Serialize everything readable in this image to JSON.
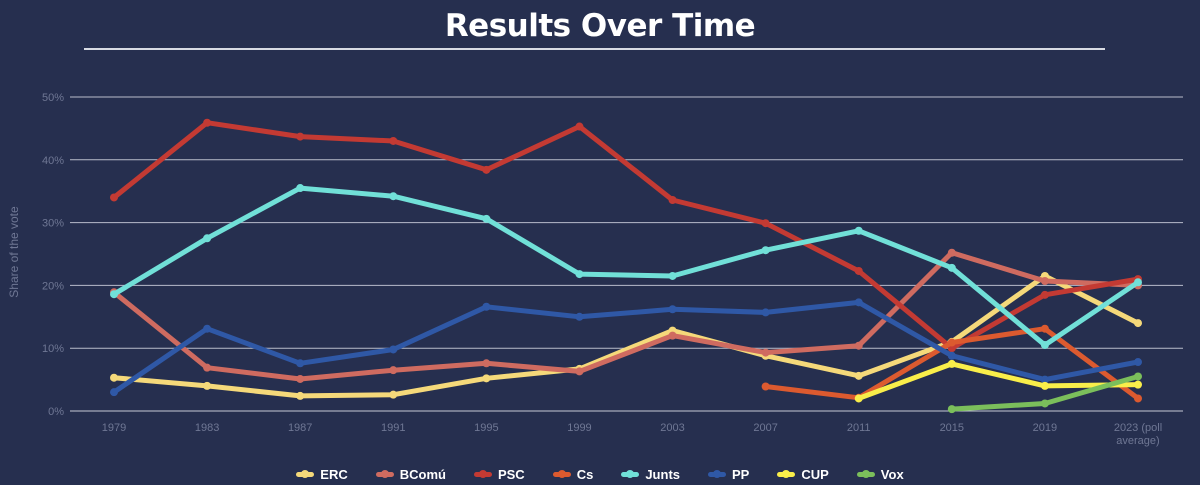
{
  "title": "Results Over Time",
  "chart_data": {
    "type": "line",
    "title": "Results Over Time",
    "ylabel": "Share of the vote",
    "xlabel": "",
    "ylim": [
      0,
      50
    ],
    "yticks": [
      "0%",
      "10%",
      "20%",
      "30%",
      "40%",
      "50%"
    ],
    "categories": [
      "1979",
      "1983",
      "1987",
      "1991",
      "1995",
      "1999",
      "2003",
      "2007",
      "2011",
      "2015",
      "2019",
      "2023 (poll average)"
    ],
    "grid": true,
    "legend_position": "bottom",
    "series": [
      {
        "name": "ERC",
        "color": "#f5d97a",
        "values": [
          5.3,
          4.0,
          2.4,
          2.6,
          5.2,
          6.7,
          12.8,
          8.8,
          5.6,
          11.0,
          21.5,
          14.0
        ]
      },
      {
        "name": "BComú",
        "color": "#cf6b60",
        "values": [
          18.9,
          6.9,
          5.1,
          6.5,
          7.6,
          6.3,
          12.0,
          9.3,
          10.4,
          25.2,
          20.7,
          20.0
        ]
      },
      {
        "name": "PSC",
        "color": "#c33a33",
        "values": [
          34.0,
          45.9,
          43.7,
          43.0,
          38.4,
          45.3,
          33.6,
          29.9,
          22.3,
          10.0,
          18.5,
          21.0
        ]
      },
      {
        "name": "Cs",
        "color": "#dc5a2f",
        "values": [
          null,
          null,
          null,
          null,
          null,
          null,
          null,
          3.9,
          2.1,
          10.9,
          13.1,
          2.0
        ]
      },
      {
        "name": "Junts",
        "color": "#71e0d8",
        "values": [
          18.6,
          27.5,
          35.5,
          34.2,
          30.6,
          21.8,
          21.5,
          25.6,
          28.7,
          22.8,
          10.5,
          20.5
        ]
      },
      {
        "name": "PP",
        "color": "#2f58a6",
        "values": [
          3.0,
          13.1,
          7.6,
          9.8,
          16.6,
          15.0,
          16.2,
          15.7,
          17.3,
          8.8,
          5.0,
          7.8
        ]
      },
      {
        "name": "CUP",
        "color": "#f9ee4a",
        "values": [
          null,
          null,
          null,
          null,
          null,
          null,
          null,
          null,
          2.0,
          7.5,
          4.0,
          4.2
        ]
      },
      {
        "name": "Vox",
        "color": "#7bbf5b",
        "values": [
          null,
          null,
          null,
          null,
          null,
          null,
          null,
          null,
          null,
          0.3,
          1.2,
          5.5
        ]
      }
    ]
  }
}
